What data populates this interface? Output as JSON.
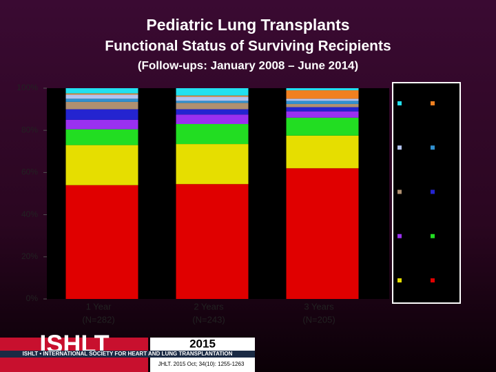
{
  "chart_data": {
    "type": "stacked_bar",
    "title": "Pediatric Lung Transplants",
    "subtitle": "Functional Status of Surviving Recipients",
    "note": "(Follow-ups: January 2008 – June 2014)",
    "categories": [
      "1 Year",
      "2 Years",
      "3 Years"
    ],
    "category_notes": [
      "(N=282)",
      "(N=243)",
      "(N=205)"
    ],
    "ylim": [
      0,
      100
    ],
    "yticks": [
      {
        "value": 0,
        "label": "0%"
      },
      {
        "value": 20,
        "label": "20%"
      },
      {
        "value": 40,
        "label": "40%"
      },
      {
        "value": 60,
        "label": "60%"
      },
      {
        "value": 80,
        "label": "80%"
      },
      {
        "value": 100,
        "label": "100%"
      }
    ],
    "series": [
      {
        "color": "#e00000",
        "values": [
          54,
          54.5,
          62
        ]
      },
      {
        "color": "#e6de00",
        "values": [
          19,
          19,
          15.5
        ]
      },
      {
        "color": "#22dd22",
        "values": [
          7.5,
          9.5,
          8.5
        ]
      },
      {
        "color": "#9a30f0",
        "values": [
          4.5,
          4.5,
          3
        ]
      },
      {
        "color": "#2424d0",
        "values": [
          5,
          2.5,
          2
        ]
      },
      {
        "color": "#b09070",
        "values": [
          3.5,
          3,
          1.5
        ]
      },
      {
        "color": "#3090d0",
        "values": [
          1.5,
          1,
          1.5
        ]
      },
      {
        "color": "#b4c4f0",
        "values": [
          2,
          2,
          1
        ]
      },
      {
        "color": "#f08020",
        "values": [
          0.5,
          0.5,
          4
        ]
      },
      {
        "color": "#22e0f0",
        "values": [
          2.5,
          3.5,
          1
        ]
      }
    ]
  },
  "footer": {
    "logo": "ISHLT",
    "society": "ISHLT • INTERNATIONAL SOCIETY FOR HEART AND LUNG TRANSPLANTATION",
    "year": "2015",
    "citation": "JHLT. 2015 Oct; 34(10): 1255-1263"
  }
}
